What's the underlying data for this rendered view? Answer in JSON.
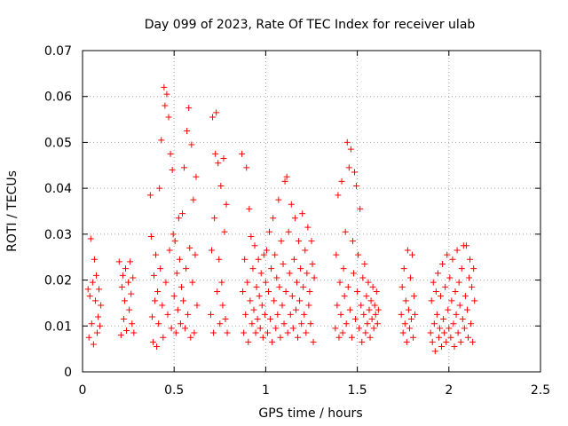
{
  "chart_data": {
    "type": "scatter",
    "title": "Day 099 of 2023, Rate Of TEC Index for receiver ulab",
    "xlabel": "GPS time / hours",
    "ylabel": "ROTI / TECUs",
    "xlim": [
      0,
      2.5
    ],
    "ylim": [
      0,
      0.07
    ],
    "xticks": [
      "0",
      "0.5",
      "1",
      "1.5",
      "2",
      "2.5"
    ],
    "yticks": [
      "0",
      "0.01",
      "0.02",
      "0.03",
      "0.04",
      "0.05",
      "0.06",
      "0.07"
    ],
    "grid": true,
    "legend": "none",
    "marker": "plus",
    "color": "#ff0000",
    "series": [
      {
        "values": [
          [
            0.03,
            0.018
          ],
          [
            0.035,
            0.0075
          ],
          [
            0.04,
            0.0165
          ],
          [
            0.045,
            0.029
          ],
          [
            0.05,
            0.0105
          ],
          [
            0.055,
            0.0195
          ],
          [
            0.06,
            0.006
          ],
          [
            0.065,
            0.0245
          ],
          [
            0.07,
            0.0155
          ],
          [
            0.075,
            0.021
          ],
          [
            0.08,
            0.0085
          ],
          [
            0.085,
            0.012
          ],
          [
            0.09,
            0.018
          ],
          [
            0.095,
            0.01
          ],
          [
            0.1,
            0.0145
          ],
          [
            0.2,
            0.024
          ],
          [
            0.21,
            0.008
          ],
          [
            0.215,
            0.0185
          ],
          [
            0.22,
            0.021
          ],
          [
            0.225,
            0.0115
          ],
          [
            0.23,
            0.0155
          ],
          [
            0.235,
            0.0225
          ],
          [
            0.24,
            0.009
          ],
          [
            0.25,
            0.0195
          ],
          [
            0.255,
            0.0135
          ],
          [
            0.26,
            0.024
          ],
          [
            0.265,
            0.017
          ],
          [
            0.27,
            0.0105
          ],
          [
            0.275,
            0.0205
          ],
          [
            0.28,
            0.0085
          ],
          [
            0.37,
            0.0385
          ],
          [
            0.375,
            0.0295
          ],
          [
            0.38,
            0.012
          ],
          [
            0.385,
            0.0065
          ],
          [
            0.39,
            0.021
          ],
          [
            0.395,
            0.0155
          ],
          [
            0.4,
            0.0255
          ],
          [
            0.405,
            0.0055
          ],
          [
            0.41,
            0.0175
          ],
          [
            0.415,
            0.0105
          ],
          [
            0.42,
            0.04
          ],
          [
            0.425,
            0.0225
          ],
          [
            0.43,
            0.0505
          ],
          [
            0.435,
            0.0145
          ],
          [
            0.44,
            0.0075
          ],
          [
            0.445,
            0.062
          ],
          [
            0.45,
            0.058
          ],
          [
            0.455,
            0.0195
          ],
          [
            0.46,
            0.0605
          ],
          [
            0.465,
            0.0125
          ],
          [
            0.47,
            0.0555
          ],
          [
            0.475,
            0.0265
          ],
          [
            0.48,
            0.0475
          ],
          [
            0.485,
            0.0095
          ],
          [
            0.49,
            0.044
          ],
          [
            0.495,
            0.03
          ],
          [
            0.5,
            0.0165
          ],
          [
            0.505,
            0.0285
          ],
          [
            0.51,
            0.0085
          ],
          [
            0.515,
            0.0215
          ],
          [
            0.52,
            0.0135
          ],
          [
            0.525,
            0.0335
          ],
          [
            0.53,
            0.0245
          ],
          [
            0.535,
            0.0105
          ],
          [
            0.54,
            0.0185
          ],
          [
            0.545,
            0.0345
          ],
          [
            0.55,
            0.0155
          ],
          [
            0.555,
            0.0445
          ],
          [
            0.56,
            0.0095
          ],
          [
            0.565,
            0.0225
          ],
          [
            0.57,
            0.0525
          ],
          [
            0.575,
            0.0125
          ],
          [
            0.58,
            0.0575
          ],
          [
            0.585,
            0.027
          ],
          [
            0.59,
            0.0075
          ],
          [
            0.595,
            0.0495
          ],
          [
            0.6,
            0.0195
          ],
          [
            0.605,
            0.0375
          ],
          [
            0.61,
            0.0085
          ],
          [
            0.615,
            0.0255
          ],
          [
            0.62,
            0.0425
          ],
          [
            0.625,
            0.0145
          ],
          [
            0.7,
            0.0125
          ],
          [
            0.705,
            0.0265
          ],
          [
            0.71,
            0.0555
          ],
          [
            0.715,
            0.0085
          ],
          [
            0.72,
            0.0335
          ],
          [
            0.725,
            0.0475
          ],
          [
            0.73,
            0.0565
          ],
          [
            0.735,
            0.0175
          ],
          [
            0.74,
            0.0455
          ],
          [
            0.745,
            0.0245
          ],
          [
            0.75,
            0.0105
          ],
          [
            0.755,
            0.0405
          ],
          [
            0.76,
            0.0195
          ],
          [
            0.765,
            0.0145
          ],
          [
            0.77,
            0.0465
          ],
          [
            0.775,
            0.0305
          ],
          [
            0.78,
            0.0115
          ],
          [
            0.785,
            0.0365
          ],
          [
            0.79,
            0.0085
          ],
          [
            0.87,
            0.0475
          ],
          [
            0.875,
            0.0175
          ],
          [
            0.88,
            0.0085
          ],
          [
            0.885,
            0.0245
          ],
          [
            0.89,
            0.0125
          ],
          [
            0.895,
            0.0445
          ],
          [
            0.9,
            0.0195
          ],
          [
            0.905,
            0.0065
          ],
          [
            0.91,
            0.0355
          ],
          [
            0.915,
            0.0155
          ],
          [
            0.92,
            0.0295
          ],
          [
            0.925,
            0.0105
          ],
          [
            0.93,
            0.0225
          ],
          [
            0.935,
            0.0135
          ],
          [
            0.94,
            0.0275
          ],
          [
            0.945,
            0.0085
          ],
          [
            0.95,
            0.0185
          ],
          [
            0.955,
            0.0115
          ],
          [
            0.96,
            0.0245
          ],
          [
            0.965,
            0.0165
          ],
          [
            0.97,
            0.0095
          ],
          [
            0.975,
            0.0215
          ],
          [
            0.98,
            0.0145
          ],
          [
            0.985,
            0.0075
          ],
          [
            0.99,
            0.0255
          ],
          [
            0.995,
            0.0125
          ],
          [
            1.0,
            0.0195
          ],
          [
            1.005,
            0.0265
          ],
          [
            1.01,
            0.0085
          ],
          [
            1.015,
            0.0175
          ],
          [
            1.02,
            0.0305
          ],
          [
            1.025,
            0.0115
          ],
          [
            1.03,
            0.0225
          ],
          [
            1.035,
            0.0065
          ],
          [
            1.04,
            0.0335
          ],
          [
            1.045,
            0.0155
          ],
          [
            1.05,
            0.0255
          ],
          [
            1.055,
            0.0095
          ],
          [
            1.06,
            0.0205
          ],
          [
            1.065,
            0.0125
          ],
          [
            1.07,
            0.0375
          ],
          [
            1.075,
            0.0185
          ],
          [
            1.08,
            0.0075
          ],
          [
            1.085,
            0.0285
          ],
          [
            1.09,
            0.0145
          ],
          [
            1.095,
            0.0235
          ],
          [
            1.1,
            0.0105
          ],
          [
            1.105,
            0.0415
          ],
          [
            1.11,
            0.0175
          ],
          [
            1.115,
            0.0425
          ],
          [
            1.12,
            0.0085
          ],
          [
            1.125,
            0.0305
          ],
          [
            1.13,
            0.0215
          ],
          [
            1.135,
            0.0125
          ],
          [
            1.14,
            0.0365
          ],
          [
            1.145,
            0.0165
          ],
          [
            1.15,
            0.0095
          ],
          [
            1.155,
            0.0245
          ],
          [
            1.16,
            0.0335
          ],
          [
            1.165,
            0.0135
          ],
          [
            1.17,
            0.0195
          ],
          [
            1.175,
            0.0075
          ],
          [
            1.18,
            0.0285
          ],
          [
            1.185,
            0.0155
          ],
          [
            1.19,
            0.0225
          ],
          [
            1.195,
            0.0105
          ],
          [
            1.2,
            0.0345
          ],
          [
            1.205,
            0.0185
          ],
          [
            1.21,
            0.0125
          ],
          [
            1.215,
            0.0265
          ],
          [
            1.22,
            0.0085
          ],
          [
            1.225,
            0.0215
          ],
          [
            1.23,
            0.0315
          ],
          [
            1.235,
            0.0145
          ],
          [
            1.24,
            0.0175
          ],
          [
            1.245,
            0.0105
          ],
          [
            1.25,
            0.0285
          ],
          [
            1.255,
            0.0235
          ],
          [
            1.26,
            0.0065
          ],
          [
            1.265,
            0.0205
          ],
          [
            1.38,
            0.0095
          ],
          [
            1.385,
            0.0255
          ],
          [
            1.39,
            0.0145
          ],
          [
            1.395,
            0.0385
          ],
          [
            1.4,
            0.0075
          ],
          [
            1.405,
            0.0195
          ],
          [
            1.41,
            0.0125
          ],
          [
            1.415,
            0.0415
          ],
          [
            1.42,
            0.0085
          ],
          [
            1.425,
            0.0225
          ],
          [
            1.43,
            0.0165
          ],
          [
            1.435,
            0.0305
          ],
          [
            1.44,
            0.0105
          ],
          [
            1.445,
            0.05
          ],
          [
            1.45,
            0.0185
          ],
          [
            1.455,
            0.0445
          ],
          [
            1.46,
            0.0135
          ],
          [
            1.465,
            0.0485
          ],
          [
            1.47,
            0.0075
          ],
          [
            1.475,
            0.0285
          ],
          [
            1.48,
            0.0215
          ],
          [
            1.485,
            0.0435
          ],
          [
            1.49,
            0.0115
          ],
          [
            1.495,
            0.0405
          ],
          [
            1.5,
            0.0175
          ],
          [
            1.505,
            0.0255
          ],
          [
            1.51,
            0.0095
          ],
          [
            1.515,
            0.0355
          ],
          [
            1.52,
            0.0145
          ],
          [
            1.525,
            0.0065
          ],
          [
            1.53,
            0.0205
          ],
          [
            1.535,
            0.0125
          ],
          [
            1.54,
            0.0235
          ],
          [
            1.545,
            0.0085
          ],
          [
            1.55,
            0.0165
          ],
          [
            1.555,
            0.0105
          ],
          [
            1.56,
            0.0195
          ],
          [
            1.565,
            0.0135
          ],
          [
            1.57,
            0.0075
          ],
          [
            1.575,
            0.0155
          ],
          [
            1.58,
            0.0115
          ],
          [
            1.585,
            0.0185
          ],
          [
            1.59,
            0.0095
          ],
          [
            1.595,
            0.0145
          ],
          [
            1.6,
            0.0125
          ],
          [
            1.605,
            0.0175
          ],
          [
            1.61,
            0.0105
          ],
          [
            1.615,
            0.0135
          ],
          [
            1.74,
            0.0125
          ],
          [
            1.745,
            0.0185
          ],
          [
            1.75,
            0.0085
          ],
          [
            1.755,
            0.0225
          ],
          [
            1.76,
            0.0105
          ],
          [
            1.765,
            0.0155
          ],
          [
            1.77,
            0.0065
          ],
          [
            1.775,
            0.0265
          ],
          [
            1.78,
            0.0135
          ],
          [
            1.785,
            0.0095
          ],
          [
            1.79,
            0.0205
          ],
          [
            1.795,
            0.0115
          ],
          [
            1.8,
            0.0255
          ],
          [
            1.805,
            0.0075
          ],
          [
            1.81,
            0.0165
          ],
          [
            1.815,
            0.0125
          ],
          [
            1.9,
            0.0085
          ],
          [
            1.905,
            0.0155
          ],
          [
            1.91,
            0.0065
          ],
          [
            1.915,
            0.0195
          ],
          [
            1.92,
            0.0105
          ],
          [
            1.925,
            0.0045
          ],
          [
            1.93,
            0.0175
          ],
          [
            1.935,
            0.0125
          ],
          [
            1.94,
            0.0215
          ],
          [
            1.945,
            0.0075
          ],
          [
            1.95,
            0.0095
          ],
          [
            1.955,
            0.0165
          ],
          [
            1.96,
            0.0055
          ],
          [
            1.965,
            0.0235
          ],
          [
            1.97,
            0.0115
          ],
          [
            1.975,
            0.0085
          ],
          [
            1.98,
            0.0185
          ],
          [
            1.985,
            0.0065
          ],
          [
            1.99,
            0.0255
          ],
          [
            1.995,
            0.0135
          ],
          [
            2.0,
            0.0095
          ],
          [
            2.005,
            0.0205
          ],
          [
            2.01,
            0.0075
          ],
          [
            2.015,
            0.0155
          ],
          [
            2.02,
            0.0245
          ],
          [
            2.025,
            0.0105
          ],
          [
            2.03,
            0.0055
          ],
          [
            2.035,
            0.0175
          ],
          [
            2.04,
            0.0125
          ],
          [
            2.045,
            0.0265
          ],
          [
            2.05,
            0.0085
          ],
          [
            2.055,
            0.0195
          ],
          [
            2.06,
            0.0145
          ],
          [
            2.065,
            0.0065
          ],
          [
            2.07,
            0.0225
          ],
          [
            2.075,
            0.0115
          ],
          [
            2.08,
            0.0275
          ],
          [
            2.085,
            0.0095
          ],
          [
            2.09,
            0.0165
          ],
          [
            2.095,
            0.0275
          ],
          [
            2.1,
            0.0135
          ],
          [
            2.105,
            0.0075
          ],
          [
            2.11,
            0.0205
          ],
          [
            2.115,
            0.0245
          ],
          [
            2.12,
            0.0105
          ],
          [
            2.125,
            0.0185
          ],
          [
            2.13,
            0.0065
          ],
          [
            2.135,
            0.0225
          ],
          [
            2.14,
            0.0155
          ]
        ]
      }
    ]
  }
}
